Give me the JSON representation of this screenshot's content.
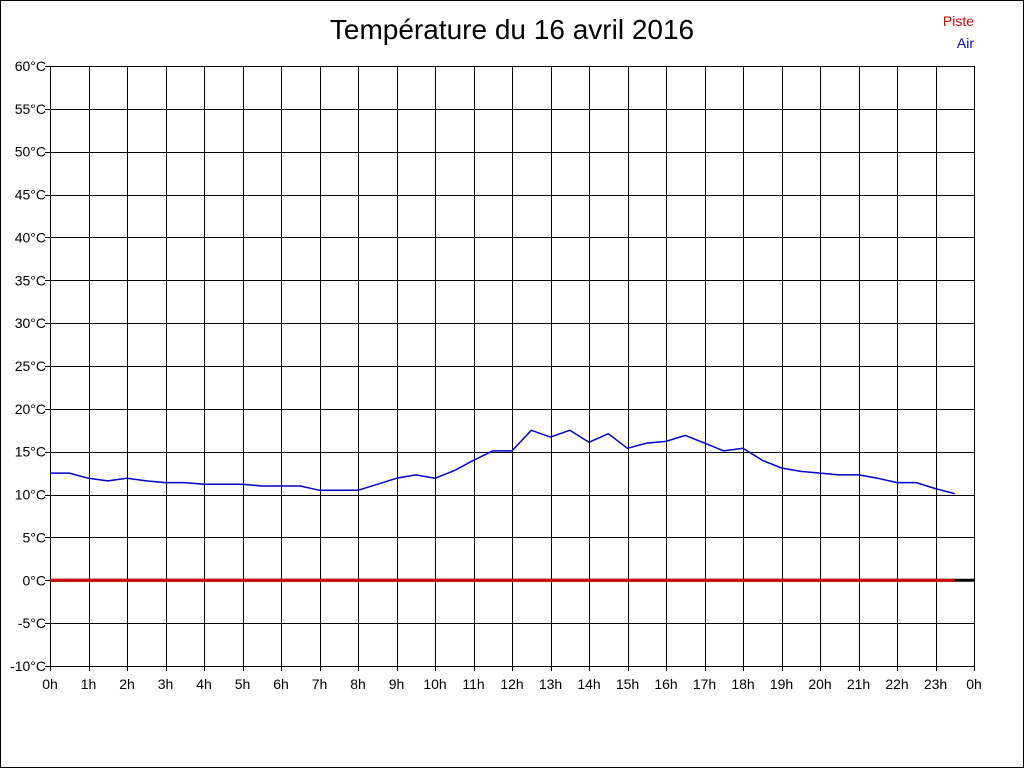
{
  "chart_data": {
    "type": "line",
    "title": "Température du 16 avril 2016",
    "ylim": [
      -10,
      60
    ],
    "xlim": [
      0,
      24
    ],
    "grid": true,
    "legend_position": "top-right",
    "x_tick_labels": [
      "0h",
      "1h",
      "2h",
      "3h",
      "4h",
      "5h",
      "6h",
      "7h",
      "8h",
      "9h",
      "10h",
      "11h",
      "12h",
      "13h",
      "14h",
      "15h",
      "16h",
      "17h",
      "18h",
      "19h",
      "20h",
      "21h",
      "22h",
      "23h",
      "0h"
    ],
    "y_tick_labels": [
      "-10°C",
      "-5°C",
      "0°C",
      "5°C",
      "10°C",
      "15°C",
      "20°C",
      "25°C",
      "30°C",
      "35°C",
      "40°C",
      "45°C",
      "50°C",
      "55°C",
      "60°C"
    ],
    "series": [
      {
        "name": "Piste",
        "color": "#d40000",
        "x": [
          0,
          23.5
        ],
        "y": [
          0,
          0
        ]
      },
      {
        "name": "Air",
        "color": "#0000c8",
        "x": [
          0,
          0.5,
          1,
          1.5,
          2,
          2.5,
          3,
          3.5,
          4,
          4.5,
          5,
          5.5,
          6,
          6.5,
          7,
          7.5,
          8,
          8.5,
          9,
          9.5,
          10,
          10.5,
          11,
          11.5,
          12,
          12.5,
          13,
          13.5,
          14,
          14.5,
          15,
          15.5,
          16,
          16.5,
          17,
          17.5,
          18,
          18.5,
          19,
          19.5,
          20,
          20.5,
          21,
          21.5,
          22,
          22.5,
          23,
          23.5
        ],
        "y": [
          12.5,
          12.5,
          11.9,
          11.6,
          11.9,
          11.6,
          11.4,
          11.4,
          11.2,
          11.2,
          11.2,
          11.0,
          11.0,
          11.0,
          10.5,
          10.5,
          10.5,
          11.2,
          11.9,
          12.3,
          11.9,
          12.8,
          14.0,
          15.1,
          15.1,
          17.5,
          16.7,
          17.5,
          16.1,
          17.1,
          15.4,
          16.0,
          16.2,
          16.9,
          16.0,
          15.1,
          15.4,
          14.0,
          13.1,
          12.7,
          12.5,
          12.3,
          12.3,
          11.9,
          11.4,
          11.4,
          10.7,
          10.1
        ]
      }
    ],
    "zero_line_color": "#000000"
  }
}
